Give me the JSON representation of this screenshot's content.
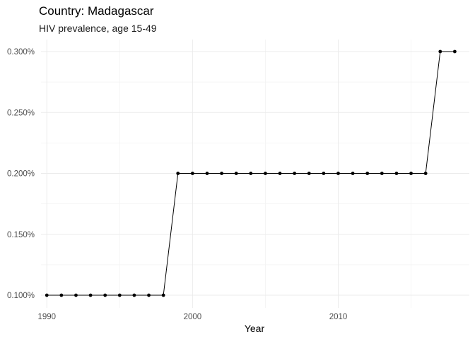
{
  "chart_data": {
    "type": "line",
    "title": "Country: Madagascar",
    "subtitle": "HIV prevalence, age 15-49",
    "xlabel": "Year",
    "ylabel": "",
    "x": [
      1990,
      1991,
      1992,
      1993,
      1994,
      1995,
      1996,
      1997,
      1998,
      1999,
      2000,
      2001,
      2002,
      2003,
      2004,
      2005,
      2006,
      2007,
      2008,
      2009,
      2010,
      2011,
      2012,
      2013,
      2014,
      2015,
      2016,
      2017,
      2018
    ],
    "series": [
      {
        "values": [
          0.1,
          0.1,
          0.1,
          0.1,
          0.1,
          0.1,
          0.1,
          0.1,
          0.1,
          0.2,
          0.2,
          0.2,
          0.2,
          0.2,
          0.2,
          0.2,
          0.2,
          0.2,
          0.2,
          0.2,
          0.2,
          0.2,
          0.2,
          0.2,
          0.2,
          0.2,
          0.2,
          0.3,
          0.3
        ]
      }
    ],
    "x_ticks": [
      1990,
      2000,
      2010
    ],
    "x_tick_labels": [
      "1990",
      "2000",
      "2010"
    ],
    "y_ticks": [
      0.1,
      0.15,
      0.2,
      0.25,
      0.3
    ],
    "y_tick_labels": [
      "0.100%",
      "0.150%",
      "0.200%",
      "0.250%",
      "0.300%"
    ],
    "xlim": [
      1989.6,
      2019
    ],
    "ylim": [
      0.1,
      0.3
    ],
    "grid": true,
    "line_color": "#000000",
    "point_color": "#000000"
  }
}
